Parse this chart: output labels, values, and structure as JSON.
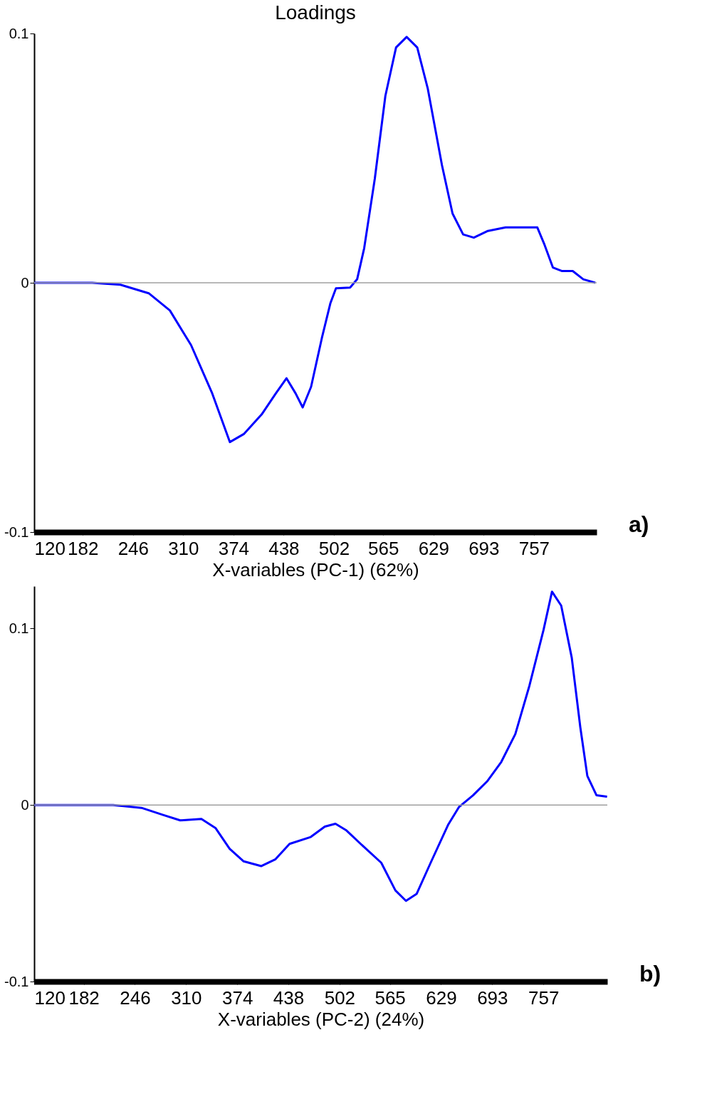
{
  "chart_data": [
    {
      "type": "line",
      "title": "Loadings",
      "xlabel": "X-variables (PC-1) (62%)",
      "annotations": [
        "a)"
      ],
      "xlim": [
        120,
        837
      ],
      "xticks": [
        120,
        182,
        246,
        310,
        374,
        438,
        502,
        565,
        629,
        693,
        757
      ],
      "ylim": [
        -0.1,
        0.1
      ],
      "yticks": [
        -0.1,
        0,
        0.1
      ],
      "ref_lines": [
        {
          "axis": "y",
          "value": 0,
          "color": "#a0a0a0"
        }
      ],
      "grid": false,
      "legend": false,
      "marker": "none",
      "line_style": "solid",
      "series": [
        {
          "color": "#0000ff",
          "x": [
            120,
            194,
            230,
            266,
            293,
            320,
            347,
            369.5,
            387.6,
            410,
            428,
            441.6,
            453.3,
            462.3,
            473,
            486.7,
            497.5,
            504.7,
            522.7,
            531.7,
            540.7,
            554.2,
            567.7,
            581.3,
            594.8,
            608.3,
            621.8,
            639.8,
            653.3,
            666.8,
            680.4,
            698.4,
            720.9,
            761.4,
            770.5,
            781.3,
            793,
            806.5,
            820,
            835.3
          ],
          "values": [
            0,
            0,
            -0.0008,
            -0.0042,
            -0.0111,
            -0.025,
            -0.0444,
            -0.0639,
            -0.0606,
            -0.0528,
            -0.0444,
            -0.0383,
            -0.0444,
            -0.05,
            -0.0417,
            -0.0222,
            -0.0083,
            -0.0022,
            -0.0019,
            0.0014,
            0.0139,
            0.0417,
            0.075,
            0.0944,
            0.0986,
            0.0944,
            0.0778,
            0.0472,
            0.0278,
            0.0194,
            0.0181,
            0.0208,
            0.0222,
            0.0222,
            0.0153,
            0.0061,
            0.0047,
            0.0047,
            0.0014,
            0
          ]
        }
      ]
    },
    {
      "type": "line",
      "xlabel": "X-variables (PC-2) (24%)",
      "annotations": [
        "b)"
      ],
      "xlim": [
        120,
        837
      ],
      "xticks": [
        120,
        182,
        246,
        310,
        374,
        438,
        502,
        565,
        629,
        693,
        757
      ],
      "ylim": [
        -0.1,
        0.124
      ],
      "yticks": [
        -0.1,
        0,
        0.1
      ],
      "ref_lines": [
        {
          "axis": "y",
          "value": 0,
          "color": "#a0a0a0"
        }
      ],
      "grid": false,
      "legend": false,
      "marker": "none",
      "line_style": "solid",
      "series": [
        {
          "color": "#0000ff",
          "x": [
            120,
            218.9,
            254.2,
            280.6,
            302.7,
            329.2,
            346.8,
            364.5,
            382.1,
            404.2,
            421.9,
            439.5,
            466,
            483.6,
            496.9,
            510.1,
            532.2,
            554.2,
            571.9,
            585.1,
            598.4,
            616,
            638.1,
            651.3,
            669,
            686.6,
            704.3,
            721.9,
            739.6,
            757.2,
            767.8,
            779.3,
            792.5,
            803.2,
            812,
            823.5,
            836.7
          ],
          "values": [
            0,
            0,
            -0.0016,
            -0.0055,
            -0.0087,
            -0.0079,
            -0.013,
            -0.0248,
            -0.0319,
            -0.0346,
            -0.0307,
            -0.022,
            -0.0181,
            -0.0122,
            -0.0106,
            -0.0142,
            -0.0236,
            -0.0327,
            -0.0484,
            -0.0543,
            -0.0504,
            -0.0327,
            -0.011,
            -0.0012,
            0.0055,
            0.0134,
            0.0244,
            0.0402,
            0.0677,
            0.0992,
            0.1209,
            0.113,
            0.0835,
            0.0441,
            0.0165,
            0.0055,
            0.0047
          ]
        }
      ]
    }
  ]
}
